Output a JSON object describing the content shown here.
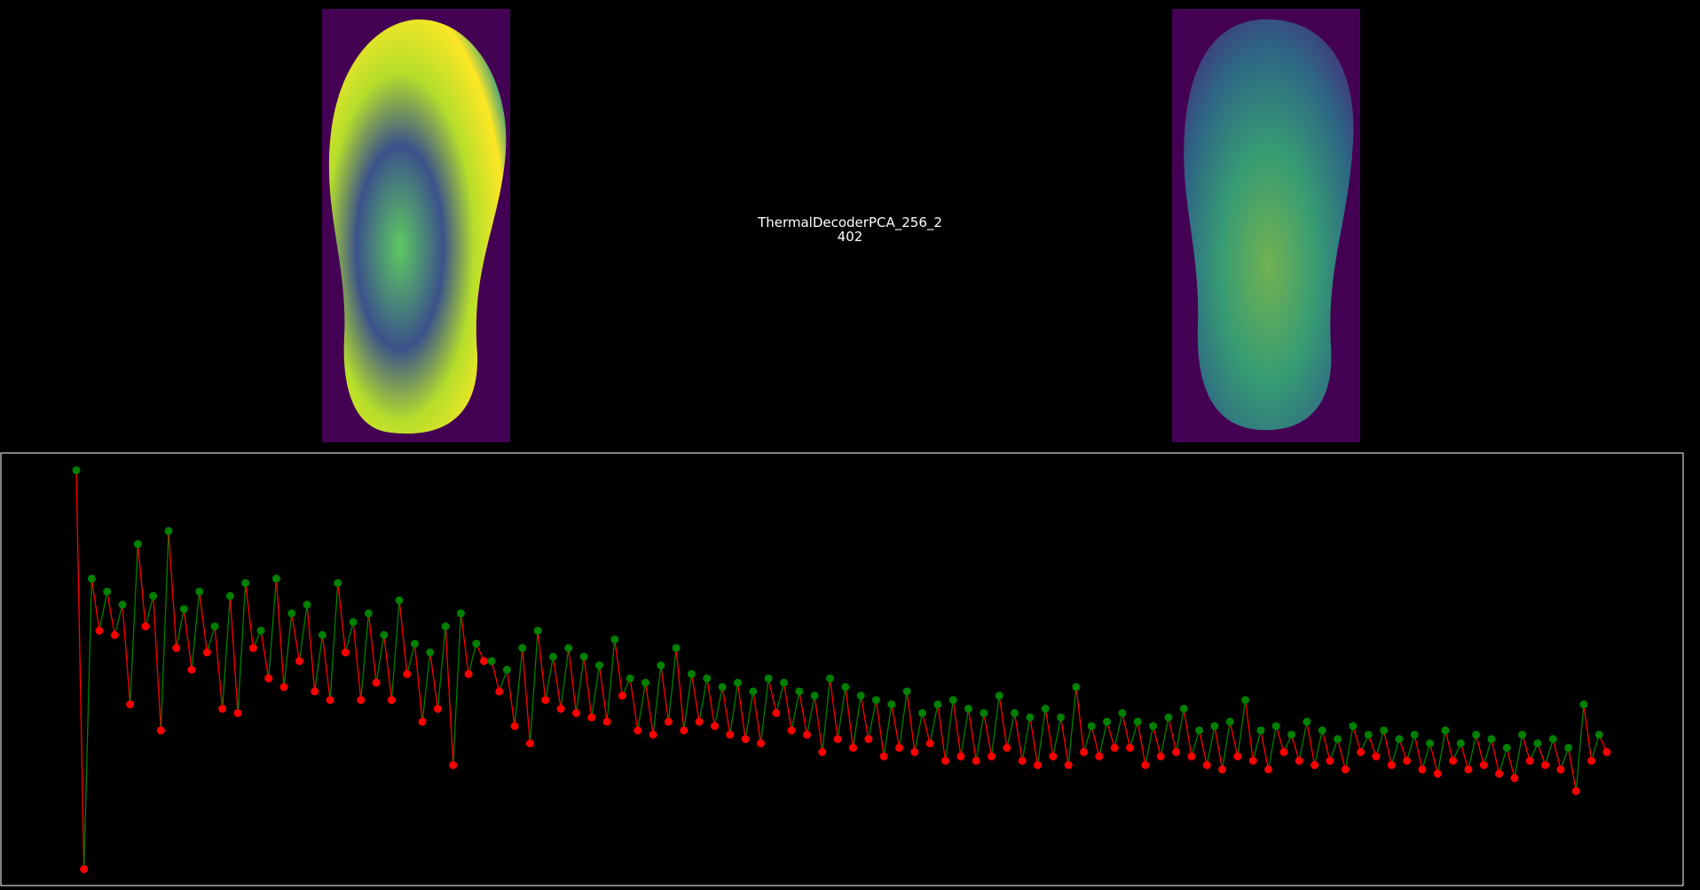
{
  "header": {
    "title": "ThermalDecoderPCA_256_2",
    "subtitle": "402"
  },
  "chart_data": {
    "type": "line",
    "values": [
      96,
      4,
      71,
      59,
      68,
      58,
      65,
      42,
      79,
      60,
      67,
      36,
      82,
      55,
      64,
      50,
      68,
      54,
      60,
      41,
      67,
      40,
      70,
      55,
      59,
      48,
      71,
      46,
      63,
      52,
      65,
      45,
      58,
      43,
      70,
      54,
      61,
      43,
      63,
      47,
      58,
      43,
      66,
      49,
      56,
      38,
      54,
      41,
      60,
      28,
      63,
      49,
      56,
      52,
      52,
      45,
      50,
      37,
      55,
      33,
      59,
      43,
      53,
      41,
      55,
      40,
      53,
      39,
      51,
      38,
      57,
      44,
      48,
      36,
      47,
      35,
      51,
      38,
      55,
      36,
      49,
      38,
      48,
      37,
      46,
      35,
      47,
      34,
      45,
      33,
      48,
      40,
      47,
      36,
      45,
      35,
      44,
      31,
      48,
      34,
      46,
      32,
      44,
      34,
      43,
      30,
      42,
      32,
      45,
      31,
      40,
      33,
      42,
      29,
      43,
      30,
      41,
      29,
      40,
      30,
      44,
      32,
      40,
      29,
      39,
      28,
      41,
      30,
      39,
      28,
      46,
      31,
      37,
      30,
      38,
      32,
      40,
      32,
      38,
      28,
      37,
      30,
      39,
      31,
      41,
      30,
      36,
      28,
      37,
      27,
      38,
      30,
      43,
      29,
      36,
      27,
      37,
      31,
      35,
      29,
      38,
      28,
      36,
      29,
      34,
      27,
      37,
      31,
      35,
      30,
      36,
      28,
      34,
      29,
      35,
      27,
      33,
      26,
      36,
      29,
      33,
      27,
      35,
      28,
      34,
      26,
      32,
      25,
      35,
      29,
      33,
      28,
      34,
      27,
      32,
      22,
      42,
      29,
      35,
      31
    ],
    "marker_colors": [
      "#008000",
      "#ff0000"
    ],
    "ylim": [
      0,
      100
    ]
  }
}
